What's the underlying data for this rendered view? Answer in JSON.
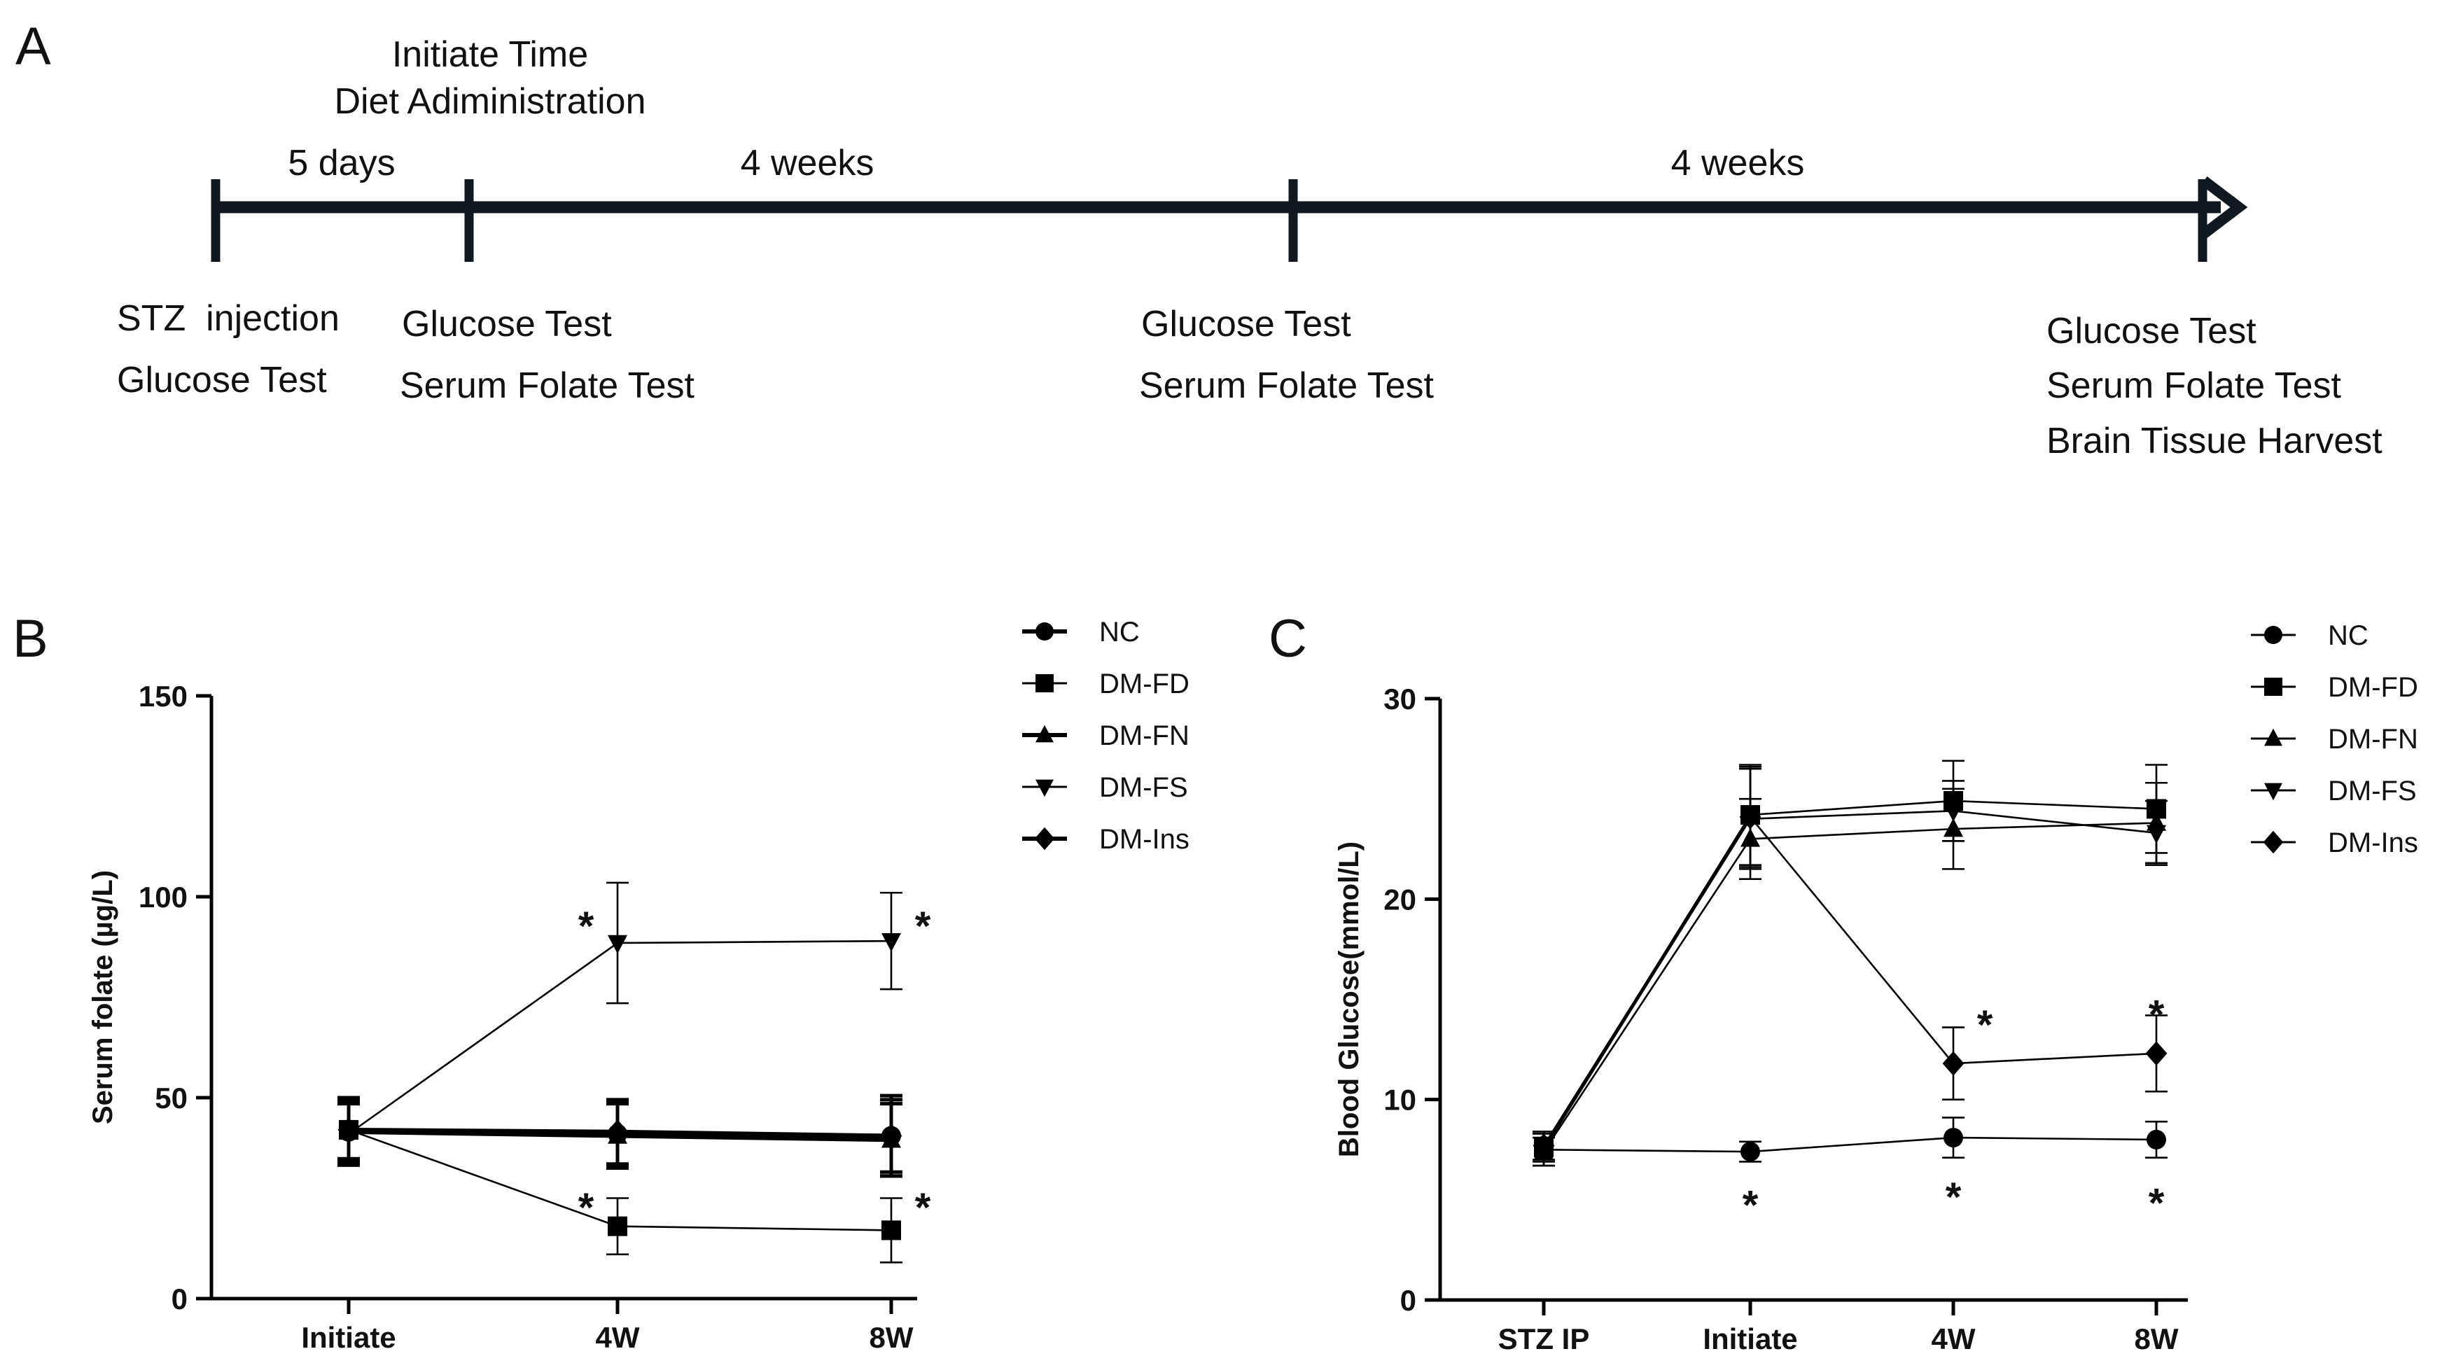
{
  "panel_a": {
    "letter": "A",
    "header_line1": "Initiate Time",
    "header_line2": "Diet Adiministration",
    "intervals": [
      "5 days",
      "4 weeks",
      "4 weeks"
    ],
    "events": [
      [
        "STZ  injection",
        "Glucose Test"
      ],
      [
        "Glucose Test",
        "Serum Folate Test"
      ],
      [
        "Glucose Test",
        "Serum Folate Test"
      ],
      [
        "Glucose Test",
        "Serum Folate Test",
        "Brain Tissue Harvest"
      ]
    ]
  },
  "chart_data": [
    {
      "panel": "B",
      "type": "line",
      "ylabel": "Serum folate (µg/L)",
      "ylim": [
        0,
        150
      ],
      "yticks": [
        0,
        50,
        100,
        150
      ],
      "categories": [
        "Initiate",
        "4W",
        "8W"
      ],
      "series": [
        {
          "name": "NC",
          "marker": "circle",
          "bold": true,
          "values": [
            41.5,
            41,
            40.5
          ],
          "errors": [
            8,
            8,
            9
          ]
        },
        {
          "name": "DM-FD",
          "marker": "square",
          "values": [
            42,
            18,
            17
          ],
          "errors": [
            7,
            7,
            8
          ]
        },
        {
          "name": "DM-FN",
          "marker": "triangle-up",
          "bold": true,
          "values": [
            41.5,
            40.5,
            39.5
          ],
          "errors": [
            7,
            8,
            9
          ]
        },
        {
          "name": "DM-FS",
          "marker": "triangle-down",
          "values": [
            41,
            88.5,
            89
          ],
          "errors": [
            8,
            15,
            12
          ]
        },
        {
          "name": "DM-Ins",
          "marker": "diamond",
          "bold": true,
          "values": [
            42,
            41.5,
            40.5
          ],
          "errors": [
            8,
            8,
            10
          ]
        }
      ],
      "stars": [
        {
          "label": "*",
          "category": "4W",
          "value": 93,
          "side": "left"
        },
        {
          "label": "*",
          "category": "8W",
          "value": 93,
          "side": "right"
        },
        {
          "label": "*",
          "category": "4W",
          "value": 23,
          "side": "left"
        },
        {
          "label": "*",
          "category": "8W",
          "value": 23,
          "side": "right"
        }
      ]
    },
    {
      "panel": "C",
      "type": "line",
      "ylabel": "Blood Glucose(mmol/L)",
      "ylim": [
        0,
        30
      ],
      "yticks": [
        0,
        10,
        20,
        30
      ],
      "categories": [
        "STZ IP",
        "Initiate",
        "4W",
        "8W"
      ],
      "series": [
        {
          "name": "NC",
          "marker": "circle",
          "values": [
            7.5,
            7.4,
            8.1,
            8.0
          ],
          "errors": [
            0.8,
            0.5,
            1.0,
            0.9
          ]
        },
        {
          "name": "DM-FD",
          "marker": "square",
          "values": [
            7.6,
            24.2,
            24.9,
            24.5
          ],
          "errors": [
            0.7,
            2.5,
            2.0,
            2.2
          ]
        },
        {
          "name": "DM-FN",
          "marker": "triangle-up",
          "values": [
            7.4,
            23.0,
            23.5,
            23.8
          ],
          "errors": [
            0.7,
            2.0,
            2.0,
            2.0
          ]
        },
        {
          "name": "DM-FS",
          "marker": "triangle-down",
          "values": [
            7.5,
            24.0,
            24.4,
            23.3
          ],
          "errors": [
            0.8,
            2.5,
            1.5,
            1.6
          ]
        },
        {
          "name": "DM-Ins",
          "marker": "diamond",
          "values": [
            7.7,
            24.1,
            11.8,
            12.3
          ],
          "errors": [
            0.7,
            2.5,
            1.8,
            1.9
          ]
        }
      ],
      "stars": [
        {
          "label": "*",
          "category": "4W",
          "value": 13.8,
          "side": "right"
        },
        {
          "label": "*",
          "category": "8W",
          "value": 14.3,
          "side": "center"
        },
        {
          "label": "*",
          "category": "Initiate",
          "value": 4.8,
          "side": "center"
        },
        {
          "label": "*",
          "category": "4W",
          "value": 5.2,
          "side": "center"
        },
        {
          "label": "*",
          "category": "8W",
          "value": 4.9,
          "side": "center"
        }
      ]
    }
  ]
}
